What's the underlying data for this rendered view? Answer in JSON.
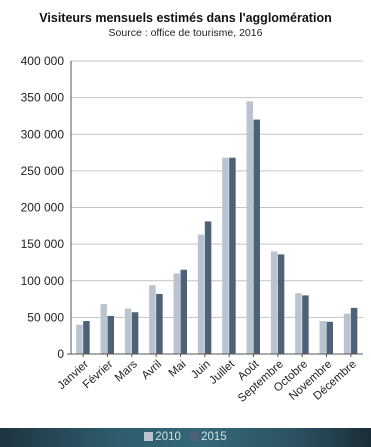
{
  "chart_data": {
    "type": "bar",
    "title": "Visiteurs mensuels estimés dans l'agglomération",
    "subtitle": "Source : office de tourisme, 2016",
    "categories": [
      "Janvier",
      "Février",
      "Mars",
      "Avril",
      "Mai",
      "Juin",
      "Juillet",
      "Août",
      "Septembre",
      "Octobre",
      "Novembre",
      "Décembre"
    ],
    "series": [
      {
        "name": "2010",
        "color": "#b9c4ce",
        "values": [
          40000,
          68000,
          62000,
          94000,
          110000,
          163000,
          268000,
          345000,
          140000,
          83000,
          45000,
          55000
        ]
      },
      {
        "name": "2015",
        "color": "#4d6278",
        "values": [
          45000,
          52000,
          57000,
          82000,
          115000,
          181000,
          268000,
          320000,
          136000,
          80000,
          44000,
          63000
        ]
      }
    ],
    "yticks": [
      "0",
      "50 000",
      "100 000",
      "150 000",
      "200 000",
      "250 000",
      "300 000",
      "350 000",
      "400 000"
    ],
    "ylim": [
      0,
      400000
    ],
    "grid": true,
    "legend_position": "bottom"
  }
}
